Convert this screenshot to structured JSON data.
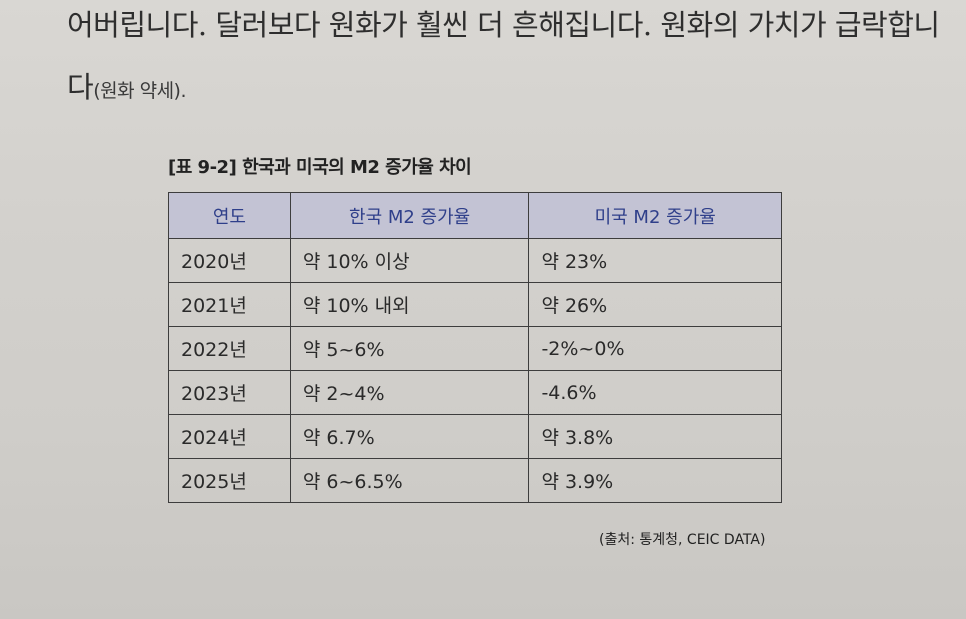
{
  "paragraph": {
    "line1": "어버립니다. 달러보다 원화가 훨씬 더 흔해집니다. 원화의 가치가 급락합니",
    "line2_main": "다",
    "line2_paren": "(원화 약세)."
  },
  "table": {
    "caption": "[표 9-2] 한국과 미국의 M2 증가율 차이",
    "headers": [
      "연도",
      "한국 M2 증가율",
      "미국 M2 증가율"
    ],
    "rows": [
      {
        "year": "2020년",
        "korea": "약 10% 이상",
        "us": "약 23%"
      },
      {
        "year": "2021년",
        "korea": "약 10% 내외",
        "us": "약 26%"
      },
      {
        "year": "2022년",
        "korea": "약 5~6%",
        "us": "-2%~0%"
      },
      {
        "year": "2023년",
        "korea": "약 2~4%",
        "us": "-4.6%"
      },
      {
        "year": "2024년",
        "korea": "약 6.7%",
        "us": "약 3.8%"
      },
      {
        "year": "2025년",
        "korea": "약 6~6.5%",
        "us": "약 3.9%"
      }
    ],
    "source": "(출처: 통계청, CEIC DATA)"
  },
  "colors": {
    "header_bg": "#c3c3d4",
    "header_text": "#2f3f8a"
  }
}
